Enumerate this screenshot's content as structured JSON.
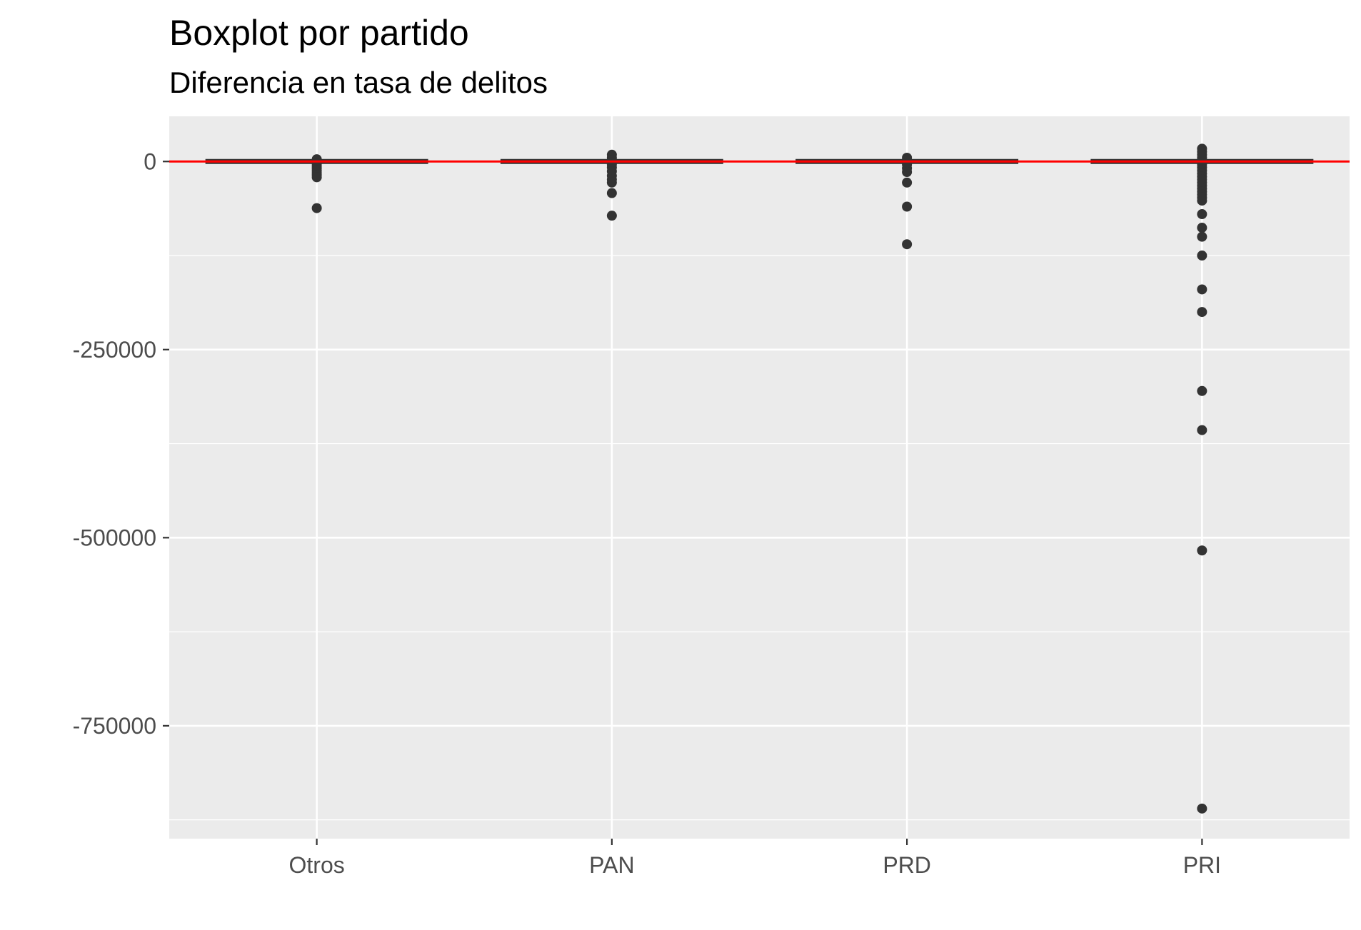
{
  "chart_data": {
    "type": "boxplot",
    "title": "Boxplot por partido",
    "subtitle": "Diferencia en tasa de delitos",
    "xlabel": "",
    "ylabel": "",
    "categories": [
      "Otros",
      "PAN",
      "PRD",
      "PRI"
    ],
    "y_ticks": [
      0,
      -250000,
      -500000,
      -750000
    ],
    "y_tick_labels": [
      "0",
      "-250000",
      "-500000",
      "-750000"
    ],
    "ylim": [
      -900000,
      60000
    ],
    "grid": true,
    "reference_line": {
      "y": 0,
      "color": "#ff0000"
    },
    "boxes": [
      {
        "category": "Otros",
        "q1": -500,
        "median": 0,
        "q3": 500,
        "outliers": [
          3000,
          1000,
          -3000,
          -6000,
          -9000,
          -12000,
          -15000,
          -18000,
          -21000,
          -62000
        ]
      },
      {
        "category": "PAN",
        "q1": -500,
        "median": 0,
        "q3": 500,
        "outliers": [
          9000,
          5000,
          2000,
          -4000,
          -8000,
          -13000,
          -19000,
          -24000,
          -28000,
          -42000,
          -72000
        ]
      },
      {
        "category": "PRD",
        "q1": -500,
        "median": 0,
        "q3": 500,
        "outliers": [
          5000,
          2000,
          -4000,
          -9000,
          -14000,
          -28000,
          -60000,
          -110000
        ]
      },
      {
        "category": "PRI",
        "q1": -500,
        "median": 0,
        "q3": 500,
        "outliers": [
          17000,
          13000,
          9000,
          5000,
          -4000,
          -8000,
          -12000,
          -16000,
          -20000,
          -24000,
          -28000,
          -32000,
          -36000,
          -40000,
          -44000,
          -48000,
          -52000,
          -70000,
          -88000,
          -100000,
          -125000,
          -170000,
          -200000,
          -305000,
          -357000,
          -517000,
          -860000
        ]
      }
    ],
    "colors": {
      "panel": "#ebebeb",
      "grid": "#ffffff",
      "box_fill": "#ff0000",
      "box_line": "#333333",
      "points": "#333333"
    }
  }
}
